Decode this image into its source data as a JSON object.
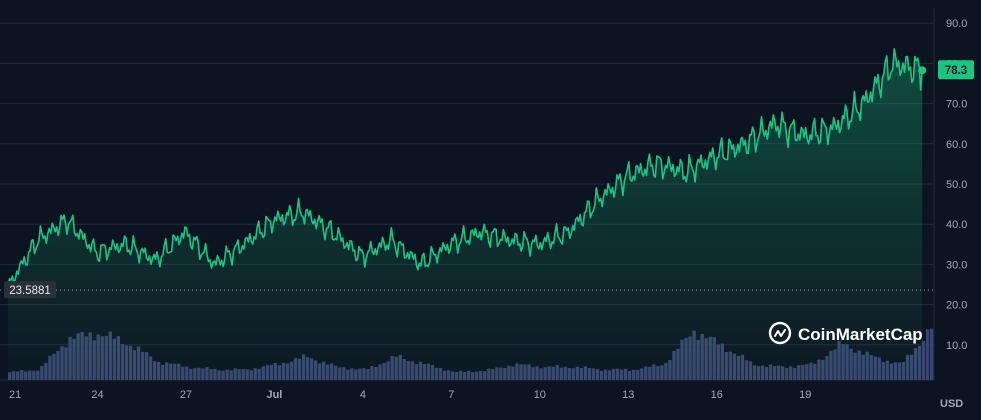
{
  "chart_data": {
    "type": "area",
    "currency": "USD",
    "y_axis": {
      "ticks": [
        10.0,
        20.0,
        30.0,
        40.0,
        50.0,
        60.0,
        70.0,
        80.0,
        90.0
      ],
      "range": [
        0,
        93
      ]
    },
    "x_axis": {
      "labels": [
        "21",
        "24",
        "27",
        "Jul",
        "4",
        "7",
        "10",
        "13",
        "16",
        "19"
      ]
    },
    "reference_line": {
      "value": 23.5881,
      "label": "23.5881"
    },
    "last_price": {
      "value": 78.3,
      "label": "78.3"
    },
    "price_series": {
      "x": [
        0,
        1,
        2,
        3,
        4,
        5,
        6,
        7,
        8,
        9,
        10,
        11,
        12,
        13,
        14,
        15,
        16,
        17,
        18,
        19,
        20,
        21,
        22,
        23,
        24,
        25,
        26,
        27,
        28,
        29,
        30,
        31
      ],
      "values": [
        24.5,
        36.0,
        41.0,
        33.0,
        35.0,
        31.0,
        38.0,
        30.0,
        35.0,
        41.0,
        43.0,
        38.0,
        32.0,
        36.0,
        30.0,
        35.0,
        38.0,
        36.0,
        35.0,
        38.0,
        46.0,
        52.0,
        55.0,
        53.0,
        57.0,
        60.0,
        65.0,
        62.0,
        64.0,
        70.0,
        80.0,
        78.3
      ]
    },
    "volume_series": {
      "x": [
        0,
        1,
        2,
        3,
        4,
        5,
        6,
        7,
        8,
        9,
        10,
        11,
        12,
        13,
        14,
        15,
        16,
        17,
        18,
        19,
        20,
        21,
        22,
        23,
        24,
        25,
        26,
        27,
        28,
        29,
        30,
        31
      ],
      "relative": [
        0.15,
        0.2,
        0.8,
        0.9,
        0.7,
        0.35,
        0.25,
        0.2,
        0.2,
        0.3,
        0.45,
        0.25,
        0.2,
        0.45,
        0.3,
        0.15,
        0.18,
        0.3,
        0.25,
        0.25,
        0.2,
        0.2,
        0.3,
        0.95,
        0.65,
        0.3,
        0.25,
        0.3,
        0.7,
        0.45,
        0.3,
        1.0
      ]
    },
    "colors": {
      "background": "#0d1421",
      "line": "#16c784",
      "fill_top": "#16c784",
      "volume": "#3c4a75",
      "grid": "#1f2a3c",
      "axis_text": "#a1a7bb",
      "reference_line": "#9aa0b0",
      "price_tag_bg": "#16c784",
      "price_tag_text": "#0d1421"
    }
  },
  "watermark": {
    "text": "CoinMarketCap",
    "icon": "coinmarketcap-logo-icon"
  }
}
